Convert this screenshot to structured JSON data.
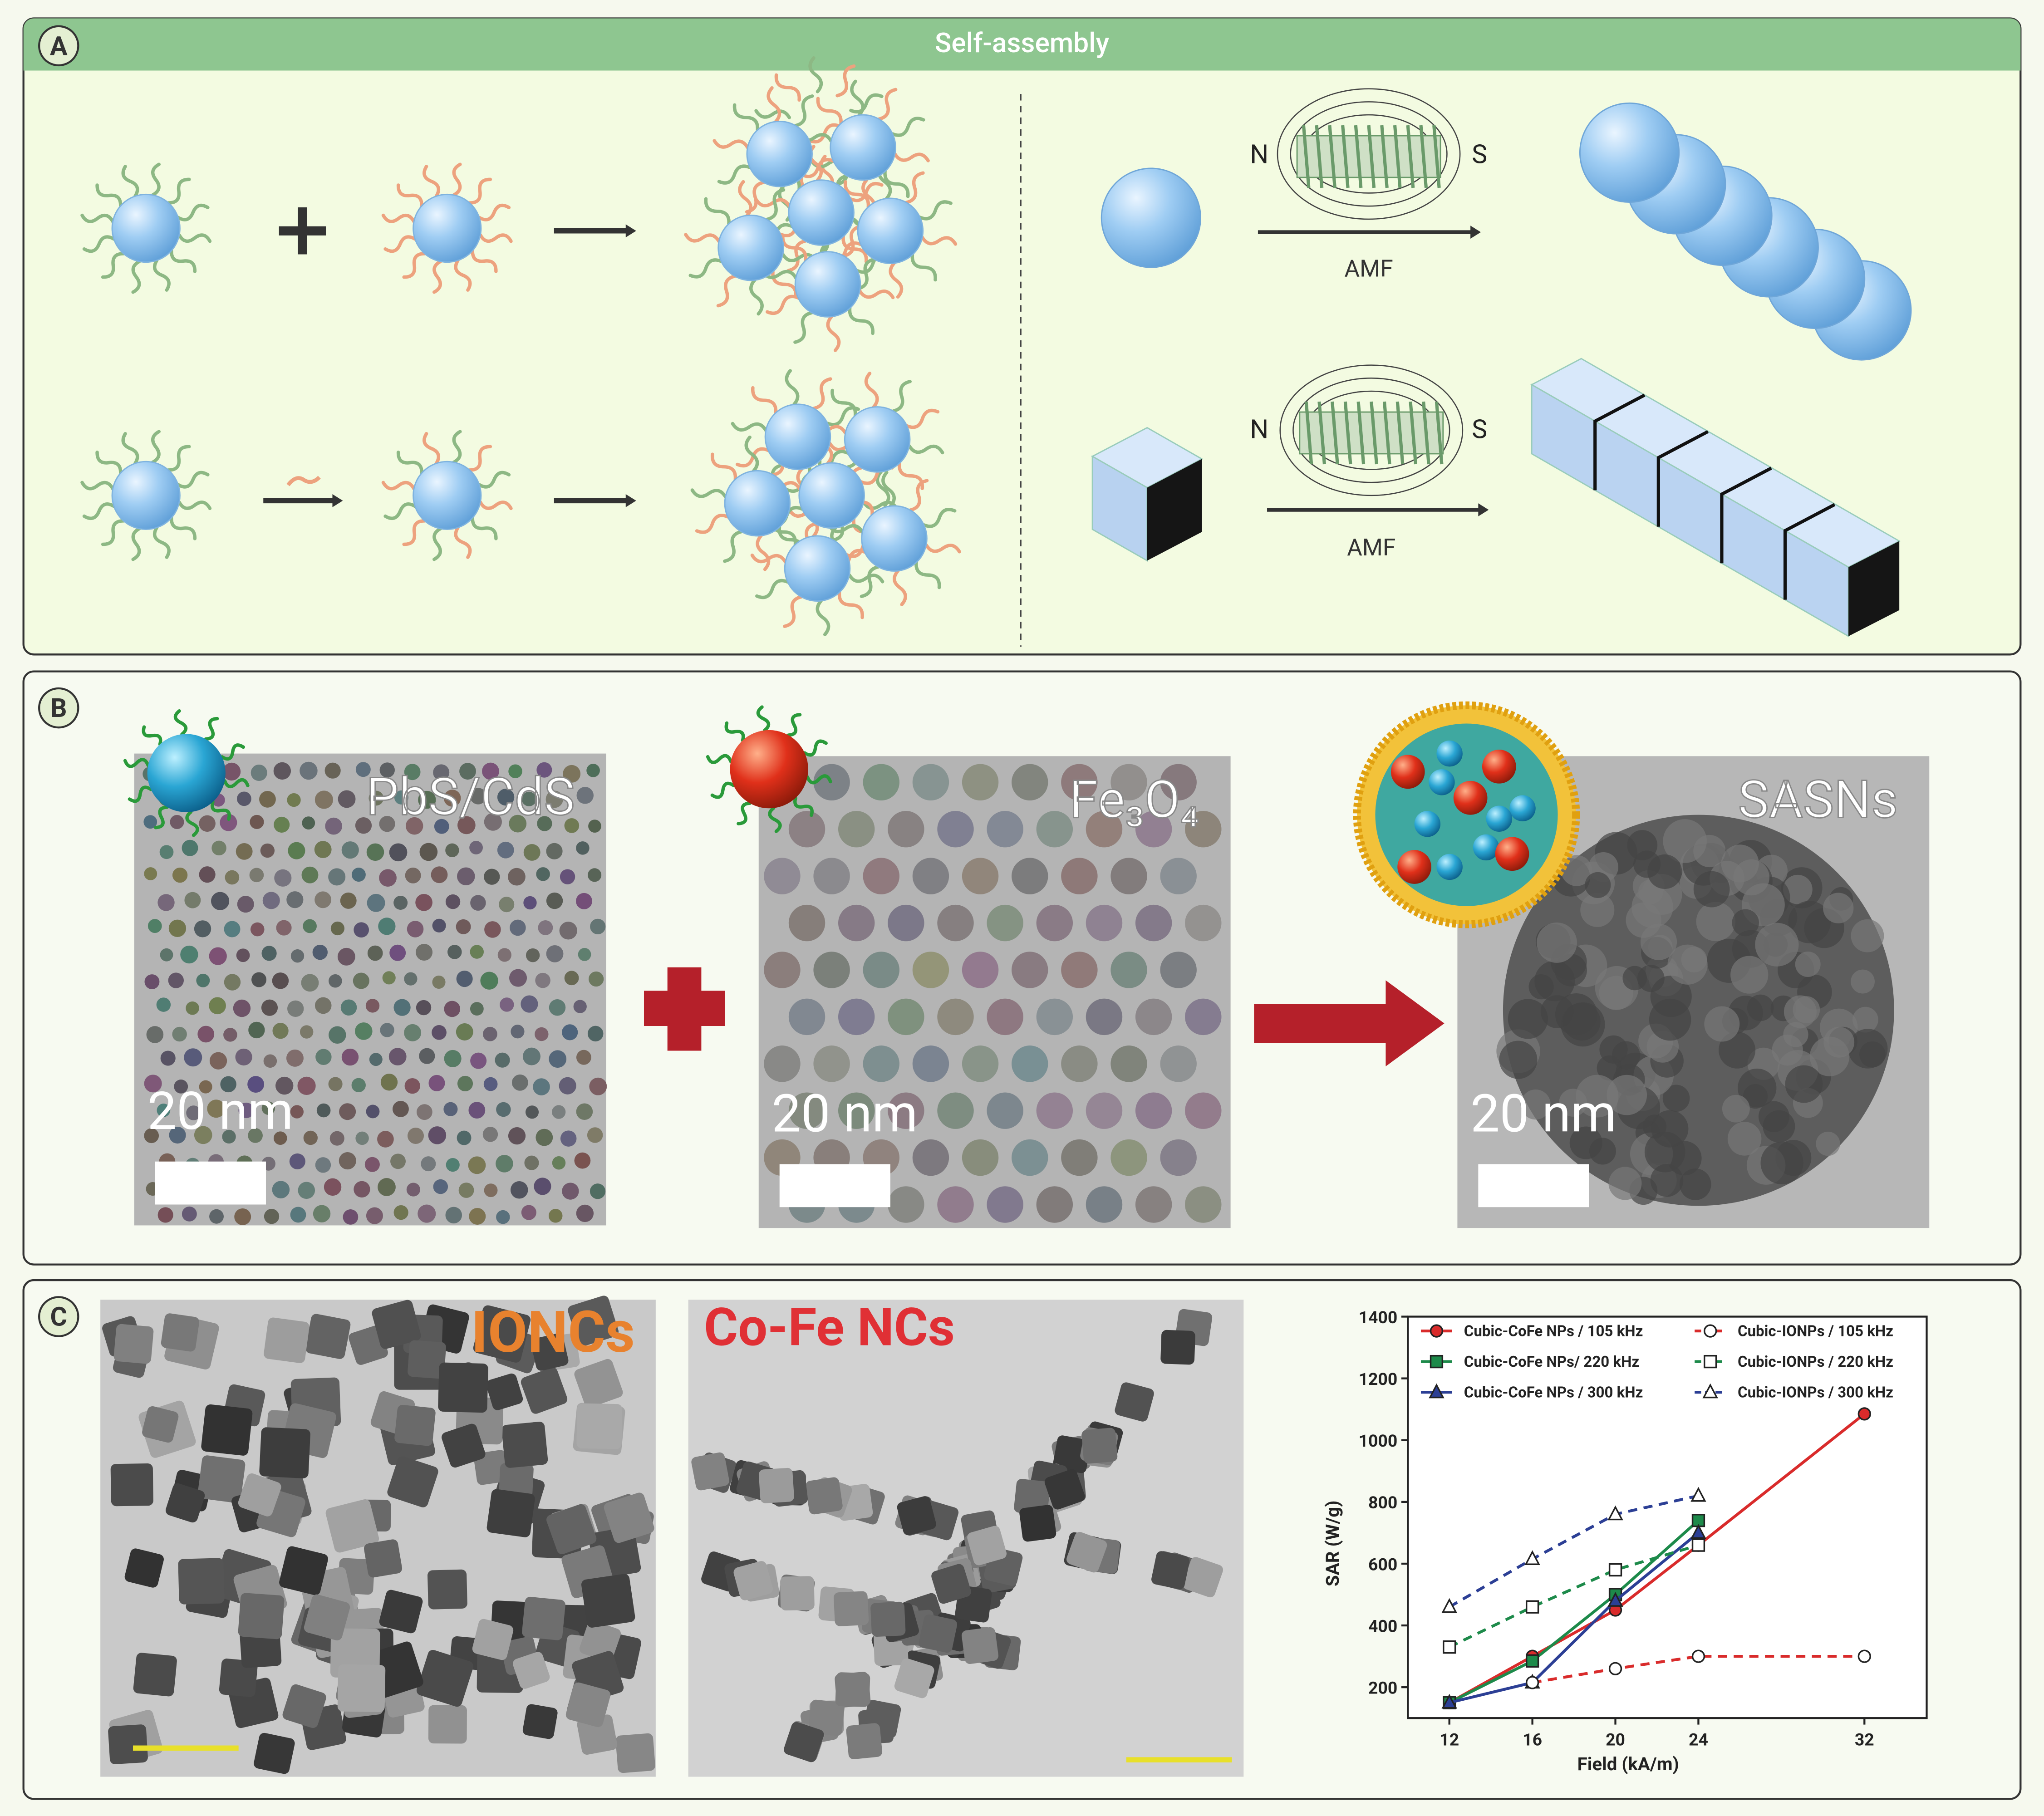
{
  "panel_a": {
    "label": "A",
    "title": "Self-assembly",
    "magnet_rows": [
      {
        "north": "N",
        "south": "S",
        "field": "AMF"
      },
      {
        "north": "N",
        "south": "S",
        "field": "AMF"
      }
    ]
  },
  "panel_b": {
    "label": "B",
    "images": [
      {
        "caption": "PbS/CdS",
        "scale_bar": "20 nm"
      },
      {
        "caption": "Fe₃O₄",
        "scale_bar": "20 nm"
      },
      {
        "caption": "SASNs",
        "scale_bar": "20 nm"
      }
    ]
  },
  "panel_c": {
    "label": "C",
    "images": [
      {
        "caption": "IONCs"
      },
      {
        "caption": "Co-Fe NCs"
      }
    ]
  },
  "chart_data": {
    "type": "line",
    "x_label": "Field (kA/m)",
    "y_label": "SAR (W/g)",
    "x": [
      12,
      16,
      20,
      24,
      32
    ],
    "series": [
      {
        "name": "Cubic-CoFe NPs / 105 kHz",
        "color": "#d92b2b",
        "marker": "circle",
        "filled": true,
        "dashed": false,
        "values": [
          150,
          300,
          450,
          660,
          1085
        ]
      },
      {
        "name": "Cubic-CoFe NPs/ 220 kHz",
        "color": "#1d8a4a",
        "marker": "square",
        "filled": true,
        "dashed": false,
        "values": [
          150,
          285,
          500,
          740,
          null
        ]
      },
      {
        "name": "Cubic-CoFe NPs / 300 kHz",
        "color": "#2c3f95",
        "marker": "triangle",
        "filled": true,
        "dashed": false,
        "values": [
          150,
          215,
          480,
          700,
          null
        ]
      },
      {
        "name": "Cubic-IONPs / 105 kHz",
        "color": "#d92b2b",
        "marker": "circle",
        "filled": false,
        "dashed": true,
        "values": [
          null,
          215,
          260,
          300,
          300
        ]
      },
      {
        "name": "Cubic-IONPs / 220 kHz",
        "color": "#1d8a4a",
        "marker": "square",
        "filled": false,
        "dashed": true,
        "values": [
          330,
          460,
          580,
          660,
          null
        ]
      },
      {
        "name": "Cubic-IONPs / 300 kHz",
        "color": "#2c3f95",
        "marker": "triangle",
        "filled": false,
        "dashed": true,
        "values": [
          460,
          615,
          760,
          820,
          null
        ]
      }
    ],
    "xlim": [
      10,
      35
    ],
    "xticks": [
      12,
      16,
      20,
      24,
      32
    ],
    "ylim": [
      100,
      1400
    ],
    "yticks": [
      200,
      400,
      600,
      800,
      1000,
      1200,
      1400
    ]
  }
}
